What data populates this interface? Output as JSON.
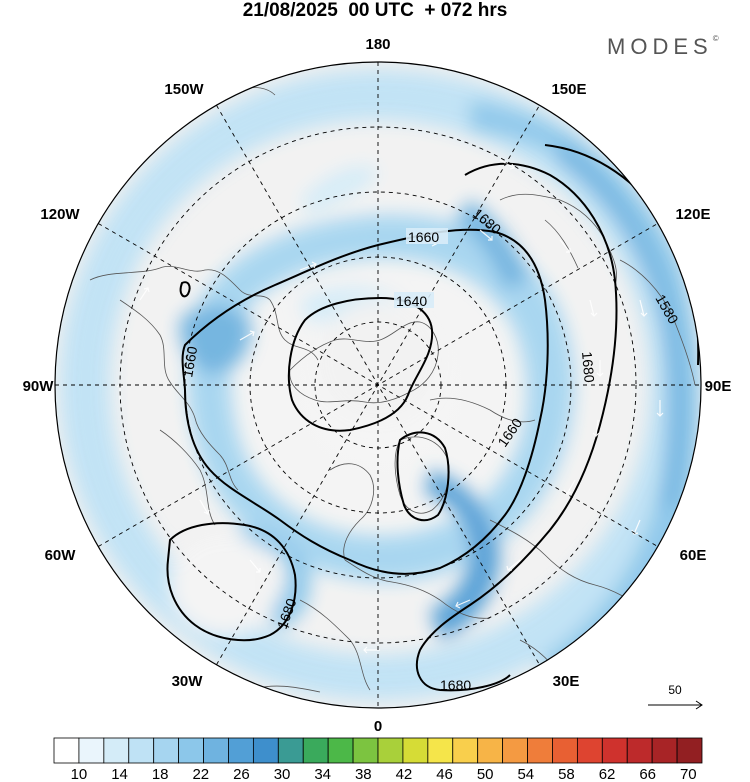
{
  "title": "21/08/2025  00 UTC  + 072 hrs",
  "brand": "MODES",
  "brand_mark": "©",
  "longitude_labels": {
    "top": "180",
    "bottom": "0",
    "left": "90W",
    "right": "90E",
    "nw1": "150W",
    "nw2": "120W",
    "ne1": "150E",
    "ne2": "120E",
    "sw1": "60W",
    "sw2": "30W",
    "se1": "60E",
    "se2": "30E"
  },
  "contour_labels": [
    "1660",
    "1640",
    "1660",
    "1680",
    "1580",
    "1680",
    "1660",
    "1680",
    "1680"
  ],
  "reference_vector": {
    "label": "50"
  },
  "colorbar": {
    "ticks": [
      "10",
      "14",
      "18",
      "22",
      "26",
      "30",
      "34",
      "38",
      "42",
      "46",
      "50",
      "54",
      "58",
      "62",
      "66",
      "70"
    ],
    "colors": [
      "#ffffff",
      "#eaf5fc",
      "#d4ecf8",
      "#bfe2f5",
      "#a6d5f0",
      "#8cc7ea",
      "#6fb3e0",
      "#529fd6",
      "#3e8fcc",
      "#3a9b94",
      "#3aaa5c",
      "#4cb848",
      "#7cc440",
      "#a9d03a",
      "#d6dc36",
      "#f5e54a",
      "#f9cf4c",
      "#f7b447",
      "#f49a42",
      "#ef7d3a",
      "#e86033",
      "#de4430",
      "#cf322d",
      "#bd2a2b",
      "#a82426",
      "#921f22"
    ]
  },
  "chart_data": {
    "type": "heatmap",
    "title": "21/08/2025  00 UTC  + 072 hrs",
    "projection": "north polar stereographic",
    "field": "wind speed (shaded) with geopotential height contours",
    "colorbar_range": [
      10,
      70
    ],
    "colorbar_step": 2,
    "contour_values": [
      1580,
      1640,
      1660,
      1680
    ],
    "reference_vector": 50
  }
}
